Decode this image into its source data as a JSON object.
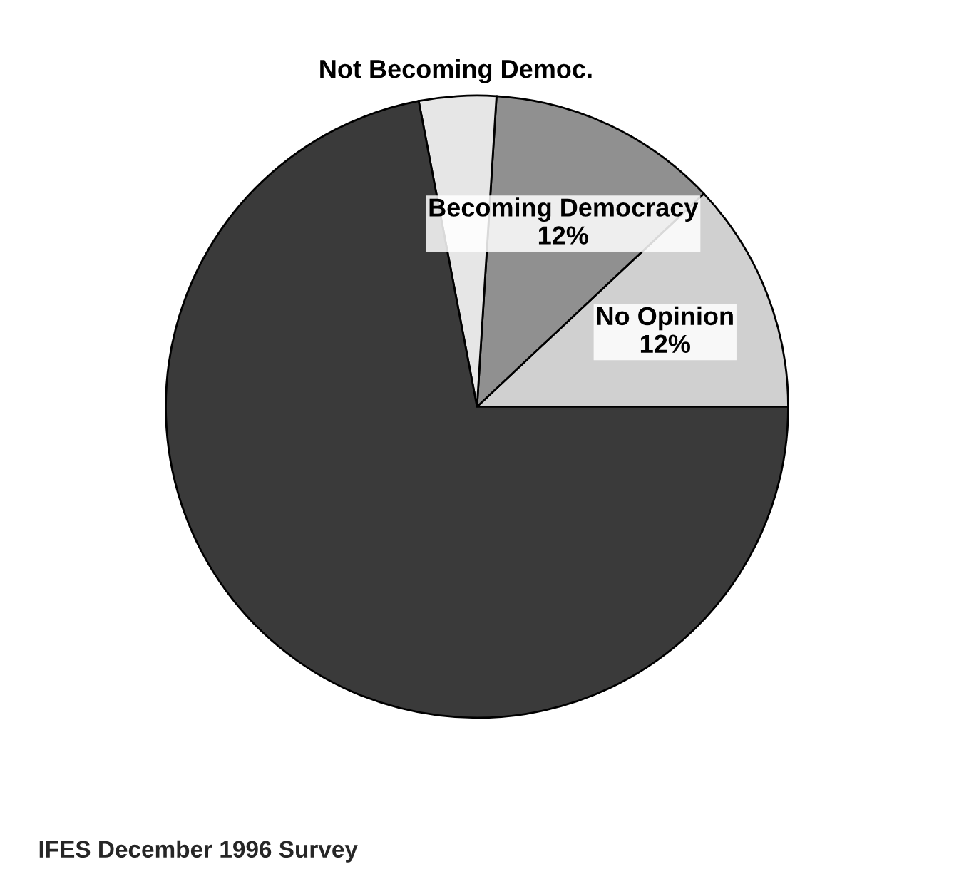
{
  "chart_data": {
    "type": "pie",
    "categories": [
      "No Opinion",
      "Becoming Democracy",
      "Not Becoming Democ.",
      null
    ],
    "values": [
      12,
      12,
      4,
      72
    ],
    "value_labels": [
      "12%",
      "12%",
      null,
      null
    ],
    "colors": [
      "#d0d0d0",
      "#909090",
      "#e6e6e6",
      "#3a3a3a"
    ],
    "annotations": [
      "IFES December 1996 Survey"
    ]
  }
}
